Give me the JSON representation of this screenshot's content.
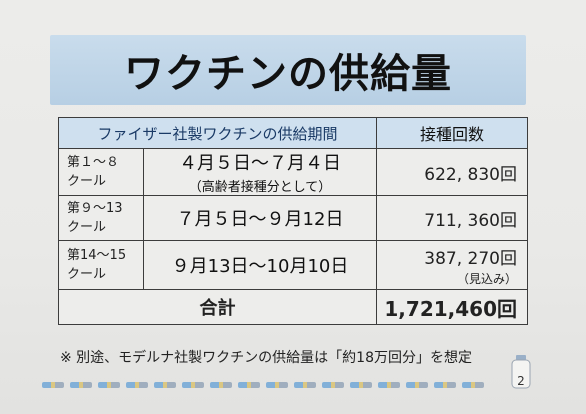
{
  "title": "ワクチンの供給量",
  "table": {
    "header_period": "ファイザー社製ワクチンの供給期間",
    "header_count": "接種回数",
    "rows": [
      {
        "label_line1": "第１～８",
        "label_line2": "クール",
        "period": "４月５日～７月４日",
        "period_sub": "（高齢者接種分として）",
        "count": "622, 830回",
        "count_note": ""
      },
      {
        "label_line1": "第９～13",
        "label_line2": "クール",
        "period": "７月５日～９月12日",
        "period_sub": "",
        "count": "711, 360回",
        "count_note": ""
      },
      {
        "label_line1": "第14～15",
        "label_line2": "クール",
        "period": "９月13日～10月10日",
        "period_sub": "",
        "count": "387, 270回",
        "count_note": "（見込み）"
      }
    ],
    "total_label": "合計",
    "total_value": "1,721,460回"
  },
  "footnote": "※ 別途、モデルナ社製ワクチンの供給量は「約18万回分」を想定",
  "page_number": "2",
  "colors": {
    "title_banner": "#c9dcec",
    "header_bg": "#cfe0ef",
    "header_text": "#1a3a66"
  }
}
